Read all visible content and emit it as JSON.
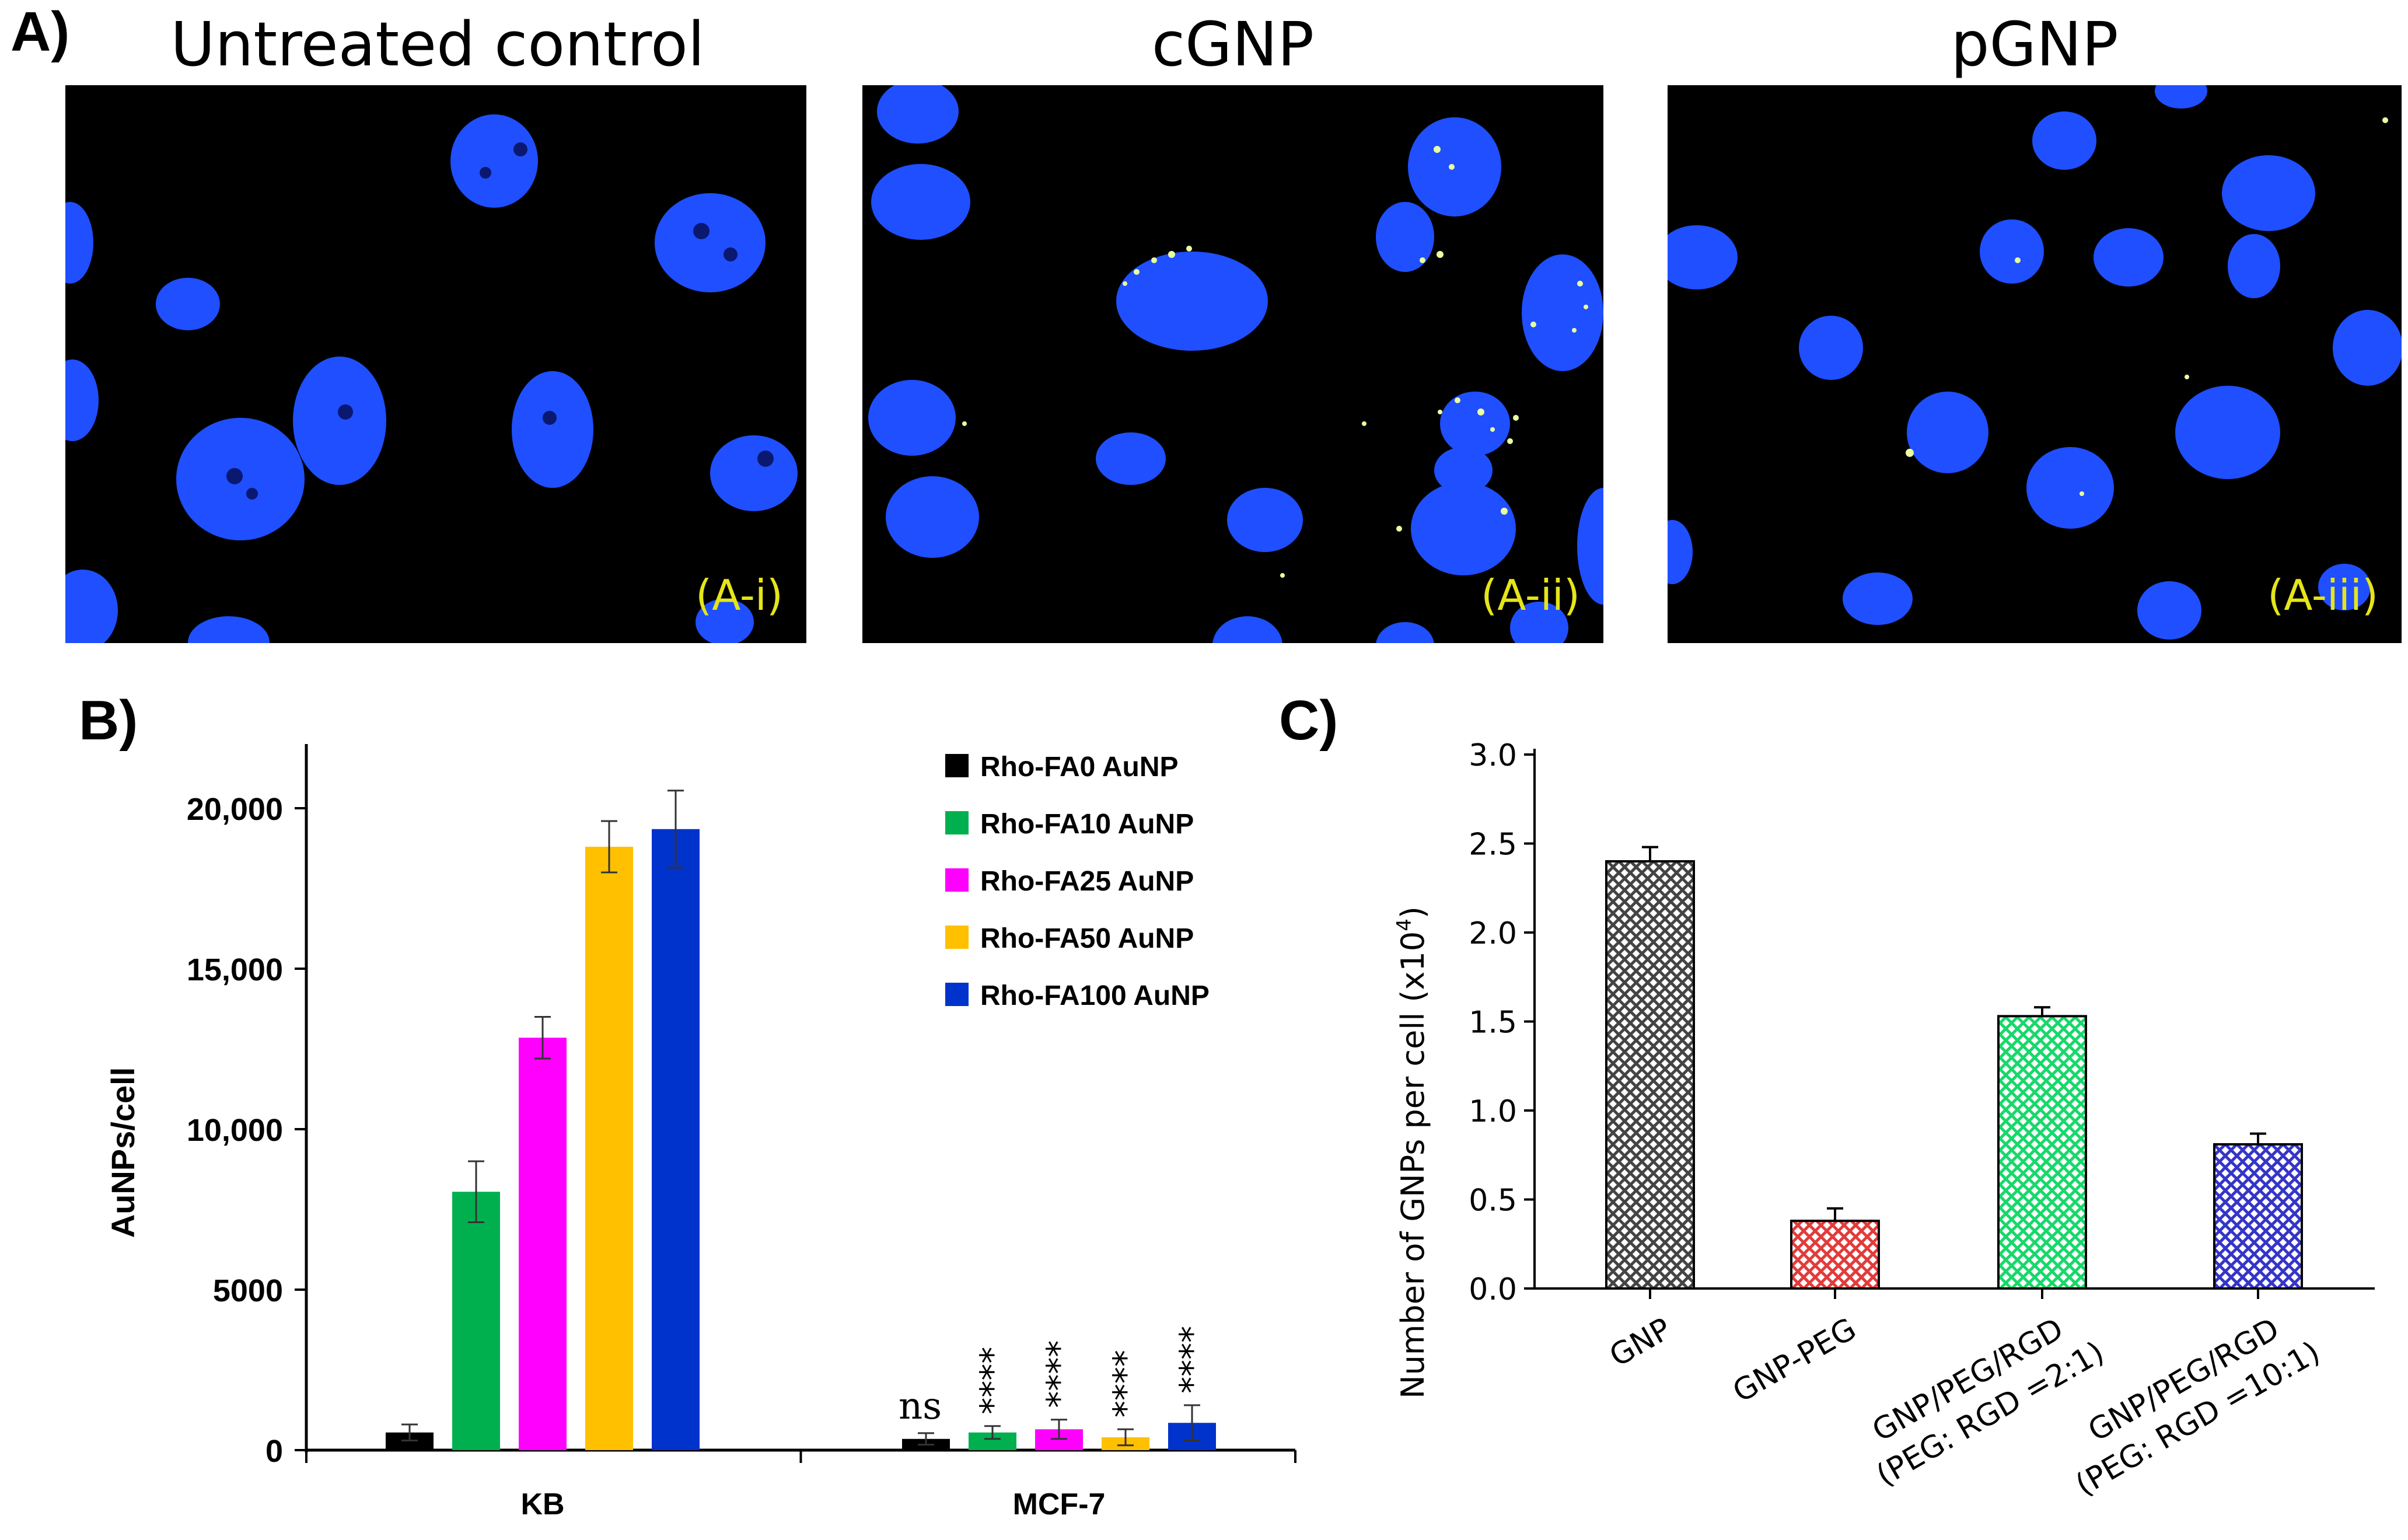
{
  "panel_a": {
    "letter": "A)",
    "images": [
      {
        "title": "Untreated control",
        "label": "(A-i)"
      },
      {
        "title": "cGNP",
        "label": "(A-ii)"
      },
      {
        "title": "pGNP",
        "label": "(A-iii)"
      }
    ]
  },
  "panel_b": {
    "letter": "B)"
  },
  "panel_c": {
    "letter": "C)"
  },
  "colors": {
    "nucleus": "#1f4fff",
    "micro_label": "#e5e51a",
    "bar_black": "#000000",
    "bar_green": "#00b04f",
    "bar_magenta": "#ff00ff",
    "bar_orange": "#ffc000",
    "bar_blue": "#0033cc"
  },
  "chart_data": [
    {
      "type": "bar",
      "ylabel": "AuNPs/cell",
      "xlabel": "",
      "categories": [
        "KB",
        "MCF-7"
      ],
      "ylim": [
        0,
        22000
      ],
      "yticks": [
        "0",
        "5000",
        "10,000",
        "15,000",
        "20,000"
      ],
      "ytick_values": [
        0,
        5000,
        10000,
        15000,
        20000
      ],
      "legend_position": "top-right",
      "series": [
        {
          "name": "Rho-FA0 AuNP",
          "color": "#000000",
          "values": [
            550,
            350
          ],
          "errors": [
            250,
            180
          ],
          "annotations": [
            "",
            "ns"
          ]
        },
        {
          "name": "Rho-FA10 AuNP",
          "color": "#00b04f",
          "values": [
            8050,
            550
          ],
          "errors": [
            950,
            200
          ],
          "annotations": [
            "",
            "****"
          ]
        },
        {
          "name": "Rho-FA25 AuNP",
          "color": "#ff00ff",
          "values": [
            12850,
            650
          ],
          "errors": [
            650,
            300
          ],
          "annotations": [
            "",
            "****"
          ]
        },
        {
          "name": "Rho-FA50 AuNP",
          "color": "#ffc000",
          "values": [
            18800,
            400
          ],
          "errors": [
            800,
            250
          ],
          "annotations": [
            "",
            "****"
          ]
        },
        {
          "name": "Rho-FA100 AuNP",
          "color": "#0033cc",
          "values": [
            19350,
            850
          ],
          "errors": [
            1200,
            550
          ],
          "annotations": [
            "",
            "****"
          ]
        }
      ]
    },
    {
      "type": "bar",
      "ylabel": "Number of GNPs per cell (x10",
      "ylabel_sup": "4",
      "ylabel_end": ")",
      "xlabel": "",
      "categories": [
        [
          "GNP"
        ],
        [
          "GNP-PEG"
        ],
        [
          "GNP/PEG/RGD",
          "(PEG: RGD =2:1)"
        ],
        [
          "GNP/PEG/RGD",
          "(PEG: RGD =10:1)"
        ]
      ],
      "values": [
        2.4,
        0.38,
        1.53,
        0.81
      ],
      "errors": [
        0.08,
        0.07,
        0.05,
        0.06
      ],
      "colors": [
        "#555555",
        "#e23b3b",
        "#17d86a",
        "#3535c8"
      ],
      "ylim": [
        0,
        3.0
      ],
      "yticks": [
        "0.0",
        "0.5",
        "1.0",
        "1.5",
        "2.0",
        "2.5",
        "3.0"
      ],
      "ytick_values": [
        0,
        0.5,
        1.0,
        1.5,
        2.0,
        2.5,
        3.0
      ]
    }
  ]
}
